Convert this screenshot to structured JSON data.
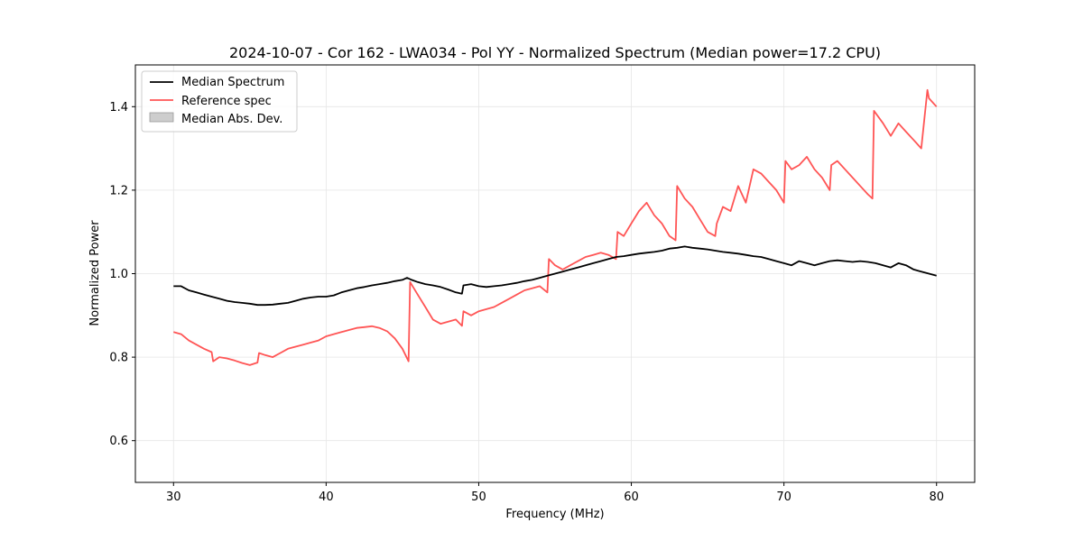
{
  "chart_data": {
    "type": "line",
    "title": "2024-10-07 - Cor 162 - LWA034 - Pol YY - Normalized Spectrum (Median power=17.2 CPU)",
    "xlabel": "Frequency (MHz)",
    "ylabel": "Normalized Power",
    "xlim": [
      27.5,
      82.5
    ],
    "ylim": [
      0.5,
      1.5
    ],
    "xticks": [
      30,
      40,
      50,
      60,
      70,
      80
    ],
    "yticks": [
      0.6,
      0.8,
      1.0,
      1.2,
      1.4
    ],
    "xtick_labels": [
      "30",
      "40",
      "50",
      "60",
      "70",
      "80"
    ],
    "ytick_labels": [
      "0.6",
      "0.8",
      "1.0",
      "1.2",
      "1.4"
    ],
    "grid": true,
    "legend_position": "upper-left",
    "legend": [
      "Median Spectrum",
      "Reference spec",
      "Median Abs. Dev."
    ],
    "series": [
      {
        "name": "Median Spectrum",
        "color": "#000000",
        "x": [
          30,
          30.5,
          31,
          31.5,
          32,
          32.5,
          33,
          33.5,
          34,
          34.5,
          35,
          35.5,
          36,
          36.5,
          37,
          37.5,
          38,
          38.5,
          39,
          39.5,
          40,
          40.5,
          41,
          41.5,
          42,
          42.5,
          43,
          43.5,
          44,
          44.5,
          45,
          45.3,
          45.6,
          46,
          46.5,
          47,
          47.5,
          48,
          48.5,
          48.9,
          49,
          49.5,
          50,
          50.5,
          51,
          51.5,
          52,
          52.5,
          53,
          53.5,
          54,
          54.5,
          55,
          55.5,
          56,
          56.5,
          57,
          57.5,
          58,
          58.5,
          59,
          59.5,
          60,
          60.5,
          61,
          61.5,
          62,
          62.5,
          63,
          63.5,
          64,
          64.5,
          65,
          65.5,
          66,
          66.5,
          67,
          67.5,
          68,
          68.5,
          69,
          69.5,
          70,
          70.5,
          71,
          71.5,
          72,
          72.5,
          73,
          73.5,
          74,
          74.5,
          75,
          75.5,
          76,
          76.5,
          77,
          77.5,
          78,
          78.5,
          79,
          79.5,
          80
        ],
        "y": [
          0.97,
          0.97,
          0.96,
          0.955,
          0.95,
          0.945,
          0.94,
          0.935,
          0.932,
          0.93,
          0.928,
          0.925,
          0.925,
          0.926,
          0.928,
          0.93,
          0.935,
          0.94,
          0.943,
          0.945,
          0.945,
          0.948,
          0.955,
          0.96,
          0.965,
          0.968,
          0.972,
          0.975,
          0.978,
          0.982,
          0.985,
          0.99,
          0.985,
          0.98,
          0.975,
          0.972,
          0.968,
          0.962,
          0.955,
          0.952,
          0.972,
          0.975,
          0.97,
          0.968,
          0.97,
          0.972,
          0.975,
          0.978,
          0.982,
          0.985,
          0.99,
          0.995,
          1.0,
          1.005,
          1.01,
          1.015,
          1.02,
          1.025,
          1.03,
          1.035,
          1.04,
          1.042,
          1.045,
          1.048,
          1.05,
          1.052,
          1.055,
          1.06,
          1.062,
          1.065,
          1.062,
          1.06,
          1.058,
          1.055,
          1.052,
          1.05,
          1.048,
          1.045,
          1.042,
          1.04,
          1.035,
          1.03,
          1.025,
          1.02,
          1.03,
          1.025,
          1.02,
          1.025,
          1.03,
          1.032,
          1.03,
          1.028,
          1.03,
          1.028,
          1.025,
          1.02,
          1.015,
          1.025,
          1.02,
          1.01,
          1.005,
          1.0,
          0.995
        ]
      },
      {
        "name": "Reference spec",
        "color": "#ff5555",
        "x": [
          30,
          30.5,
          31,
          31.5,
          32,
          32.5,
          32.6,
          33,
          33.5,
          34,
          34.5,
          35,
          35.5,
          35.6,
          36,
          36.5,
          37,
          37.5,
          38,
          38.5,
          39,
          39.5,
          40,
          40.5,
          41,
          41.5,
          42,
          42.5,
          43,
          43.5,
          44,
          44.5,
          45,
          45.4,
          45.5,
          46,
          46.5,
          47,
          47.5,
          48,
          48.5,
          48.9,
          49,
          49.5,
          50,
          50.5,
          51,
          51.5,
          52,
          52.5,
          53,
          53.5,
          54,
          54.5,
          54.6,
          55,
          55.5,
          56,
          56.5,
          57,
          57.5,
          58,
          58.5,
          59,
          59.1,
          59.5,
          60,
          60.5,
          61,
          61.5,
          62,
          62.5,
          62.9,
          63,
          63.5,
          64,
          64.5,
          65,
          65.5,
          65.6,
          66,
          66.5,
          67,
          67.5,
          68,
          68.5,
          69,
          69.5,
          70,
          70.1,
          70.5,
          71,
          71.5,
          72,
          72.5,
          73,
          73.1,
          73.5,
          74,
          74.5,
          75,
          75.5,
          75.8,
          75.9,
          76.5,
          77,
          77.5,
          78,
          78.5,
          79,
          79.4,
          79.5,
          80
        ],
        "y": [
          0.86,
          0.855,
          0.84,
          0.83,
          0.82,
          0.812,
          0.79,
          0.8,
          0.797,
          0.792,
          0.786,
          0.781,
          0.787,
          0.81,
          0.805,
          0.8,
          0.81,
          0.82,
          0.825,
          0.83,
          0.835,
          0.84,
          0.85,
          0.855,
          0.86,
          0.865,
          0.87,
          0.872,
          0.874,
          0.87,
          0.862,
          0.845,
          0.82,
          0.79,
          0.98,
          0.95,
          0.92,
          0.89,
          0.88,
          0.885,
          0.89,
          0.875,
          0.91,
          0.9,
          0.91,
          0.915,
          0.92,
          0.93,
          0.94,
          0.95,
          0.96,
          0.965,
          0.97,
          0.955,
          1.035,
          1.02,
          1.01,
          1.02,
          1.03,
          1.04,
          1.045,
          1.05,
          1.045,
          1.035,
          1.1,
          1.09,
          1.12,
          1.15,
          1.17,
          1.14,
          1.12,
          1.09,
          1.08,
          1.21,
          1.18,
          1.16,
          1.13,
          1.1,
          1.09,
          1.12,
          1.16,
          1.15,
          1.21,
          1.17,
          1.25,
          1.24,
          1.22,
          1.2,
          1.17,
          1.27,
          1.25,
          1.26,
          1.28,
          1.25,
          1.23,
          1.2,
          1.26,
          1.27,
          1.25,
          1.23,
          1.21,
          1.19,
          1.18,
          1.39,
          1.36,
          1.33,
          1.36,
          1.34,
          1.32,
          1.3,
          1.44,
          1.42,
          1.4
        ]
      },
      {
        "name": "Median Abs. Dev.",
        "color": "#c0c0c0",
        "type": "fill_between",
        "x": [],
        "lower": [],
        "upper": []
      }
    ]
  }
}
